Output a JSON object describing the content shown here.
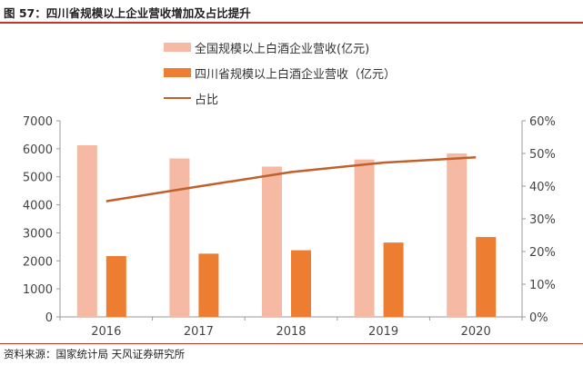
{
  "header": {
    "title": "图 57：四川省规模以上企业营收增加及占比提升"
  },
  "source": "资料来源：国家统计局 天风证券研究所",
  "colors": {
    "national": "#f5b9a4",
    "sichuan": "#ed7d31",
    "ratio": "#c0602a"
  },
  "chart_data": {
    "type": "bar",
    "title": "",
    "xlabel": "",
    "ylabel": "",
    "categories": [
      "2016",
      "2017",
      "2018",
      "2019",
      "2020"
    ],
    "series": [
      {
        "name": "全国规模以上白酒企业营收(亿元)",
        "type": "bar",
        "axis": "left",
        "values": [
          6125,
          5654,
          5364,
          5618,
          5836
        ]
      },
      {
        "name": "四川省规模以上白酒企业营收（亿元）",
        "type": "bar",
        "axis": "left",
        "values": [
          2170,
          2256,
          2379,
          2653,
          2850
        ]
      },
      {
        "name": "占比",
        "type": "line",
        "axis": "right",
        "values": [
          0.354,
          0.399,
          0.443,
          0.472,
          0.488
        ]
      }
    ],
    "ylim": [
      0,
      7000
    ],
    "yticks": [
      "0",
      "1000",
      "2000",
      "3000",
      "4000",
      "5000",
      "6000",
      "7000"
    ],
    "y2lim": [
      0,
      0.6
    ],
    "y2ticks": [
      "0%",
      "10%",
      "20%",
      "30%",
      "40%",
      "50%",
      "60%"
    ],
    "legend": "top-left"
  }
}
